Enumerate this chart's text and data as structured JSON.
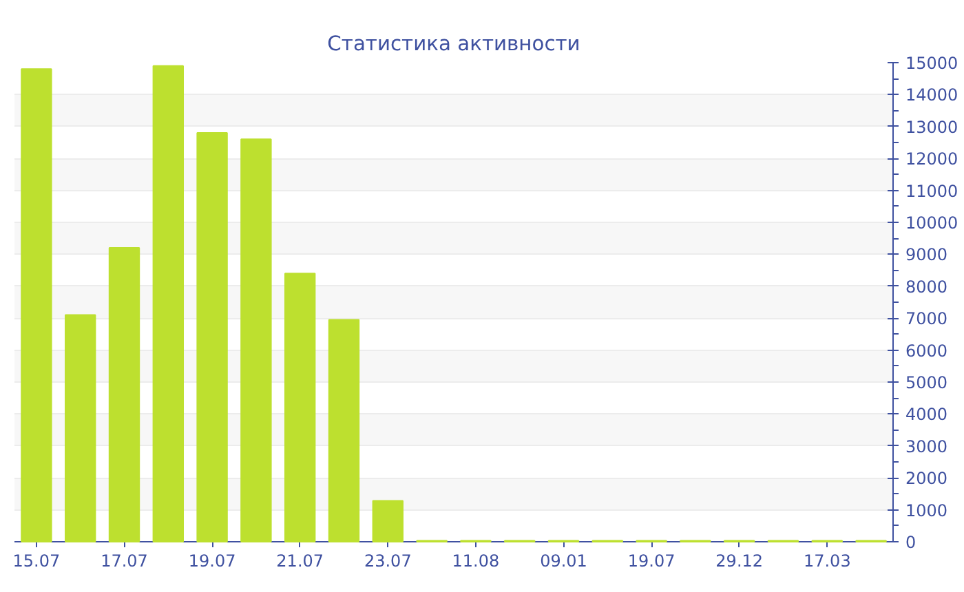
{
  "chart_data": {
    "type": "bar",
    "title": "Статистика активности",
    "categories": [
      "15.07",
      null,
      "17.07",
      null,
      "19.07",
      null,
      "21.07",
      null,
      "23.07",
      null,
      "11.08",
      null,
      "09.01",
      null,
      "19.07",
      null,
      "29.12",
      null,
      "17.03",
      null
    ],
    "values": [
      14800,
      7100,
      9200,
      14900,
      12800,
      12600,
      8400,
      6950,
      1280,
      30,
      30,
      30,
      30,
      30,
      30,
      30,
      30,
      30,
      30,
      30
    ],
    "color": "#bde02f",
    "ylim": [
      0,
      15000
    ],
    "yticks": [
      0,
      1000,
      2000,
      3000,
      4000,
      5000,
      6000,
      7000,
      8000,
      9000,
      10000,
      11000,
      12000,
      13000,
      14000,
      15000
    ],
    "grid": "y"
  }
}
